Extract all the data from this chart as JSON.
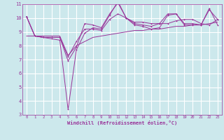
{
  "x": [
    0,
    1,
    2,
    3,
    4,
    5,
    6,
    7,
    8,
    9,
    10,
    11,
    12,
    13,
    14,
    15,
    16,
    17,
    18,
    19,
    20,
    21,
    22,
    23
  ],
  "line1": [
    10.1,
    8.7,
    8.6,
    8.6,
    8.6,
    7.2,
    8.3,
    9.2,
    9.2,
    9.1,
    9.9,
    10.3,
    10.0,
    9.7,
    9.7,
    9.6,
    9.6,
    9.6,
    9.8,
    9.9,
    9.9,
    9.6,
    9.5,
    9.9
  ],
  "line2": [
    10.1,
    8.7,
    8.6,
    8.6,
    8.6,
    6.9,
    7.9,
    9.6,
    9.5,
    9.3,
    10.3,
    11.1,
    10.0,
    9.6,
    9.5,
    9.4,
    9.6,
    10.3,
    10.3,
    9.6,
    9.6,
    9.5,
    10.6,
    9.9
  ],
  "line3": [
    10.1,
    8.7,
    8.6,
    8.5,
    8.4,
    3.4,
    7.7,
    8.9,
    9.3,
    9.2,
    10.2,
    11.2,
    10.0,
    9.5,
    9.4,
    9.2,
    9.3,
    10.2,
    10.3,
    9.5,
    9.5,
    9.5,
    10.7,
    9.5
  ],
  "line4": [
    8.7,
    8.7,
    8.7,
    8.7,
    8.7,
    7.3,
    8.0,
    8.3,
    8.6,
    8.7,
    8.8,
    8.9,
    9.0,
    9.1,
    9.1,
    9.2,
    9.2,
    9.3,
    9.4,
    9.4,
    9.5,
    9.5,
    9.6,
    9.7
  ],
  "bg_color": "#cce8ec",
  "line_color": "#993399",
  "grid_color": "#ffffff",
  "xlabel": "Windchill (Refroidissement éolien,°C)",
  "xlim": [
    -0.5,
    23.5
  ],
  "ylim": [
    3,
    11
  ],
  "yticks": [
    3,
    4,
    5,
    6,
    7,
    8,
    9,
    10,
    11
  ],
  "xticks": [
    0,
    1,
    2,
    3,
    4,
    5,
    6,
    7,
    8,
    9,
    10,
    11,
    12,
    13,
    14,
    15,
    16,
    17,
    18,
    19,
    20,
    21,
    22,
    23
  ],
  "tick_fontsize": 4.0,
  "xlabel_fontsize": 5.0,
  "lw": 0.7,
  "marker_size": 2.0
}
